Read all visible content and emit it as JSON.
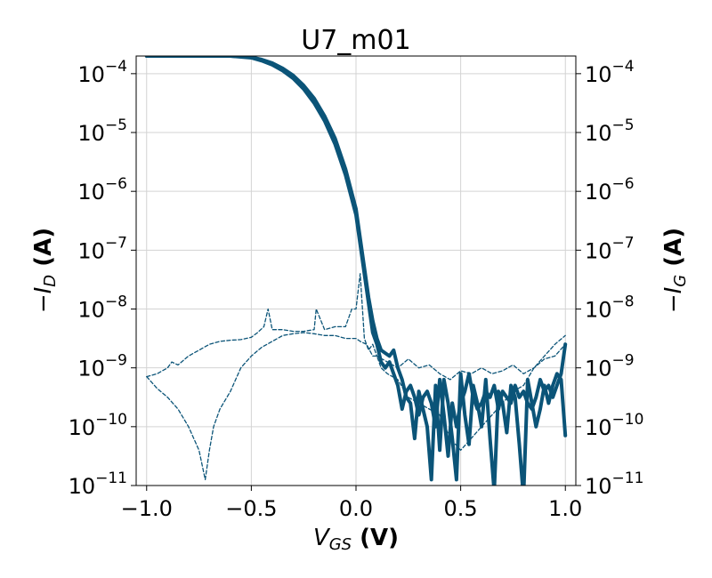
{
  "chart_data": {
    "type": "line",
    "title": "U7_m01",
    "xlabel": {
      "main": "V",
      "sub": "GS",
      "unit": " (V)"
    },
    "ylabel_left": {
      "main": "−I",
      "sub": "D",
      "unit": " (A)"
    },
    "ylabel_right": {
      "main": "−I",
      "sub": "G",
      "unit": " (A)"
    },
    "xlim": [
      -1.05,
      1.05
    ],
    "ylim_log10": [
      -11,
      -3.7
    ],
    "y_scale": "log",
    "grid": true,
    "color": "#0b5478",
    "x_ticks": [
      -1.0,
      -0.5,
      0.0,
      0.5,
      1.0
    ],
    "x_tick_labels": [
      "−1.0",
      "−0.5",
      "0.0",
      "0.5",
      "1.0"
    ],
    "y_ticks_exp": [
      -11,
      -10,
      -9,
      -8,
      -7,
      -6,
      -5,
      -4
    ],
    "y_tick_labels": [
      "−11",
      "−10",
      "−9",
      "−8",
      "−7",
      "−6",
      "−5",
      "−4"
    ],
    "series": [
      {
        "role": "drain-forward",
        "style": "solid",
        "x": [
          -1.0,
          -0.9,
          -0.8,
          -0.7,
          -0.6,
          -0.5,
          -0.45,
          -0.4,
          -0.35,
          -0.3,
          -0.25,
          -0.2,
          -0.15,
          -0.1,
          -0.05,
          0.0,
          0.02,
          0.04,
          0.06,
          0.08,
          0.1,
          0.12,
          0.14,
          0.16,
          0.18,
          0.2,
          0.22,
          0.24,
          0.26,
          0.28,
          0.3,
          0.32,
          0.34,
          0.36,
          0.38,
          0.4,
          0.42,
          0.44,
          0.46,
          0.48,
          0.5,
          0.52,
          0.54,
          0.56,
          0.58,
          0.6,
          0.62,
          0.64,
          0.66,
          0.68,
          0.7,
          0.72,
          0.74,
          0.76,
          0.78,
          0.8,
          0.82,
          0.84,
          0.86,
          0.88,
          0.9,
          0.92,
          0.94,
          0.96,
          0.98,
          1.0
        ],
        "y_log10": [
          -3.66,
          -3.66,
          -3.665,
          -3.67,
          -3.69,
          -3.72,
          -3.76,
          -3.82,
          -3.91,
          -4.03,
          -4.2,
          -4.42,
          -4.72,
          -5.1,
          -5.62,
          -6.3,
          -6.8,
          -7.3,
          -7.8,
          -8.2,
          -8.5,
          -8.7,
          -8.75,
          -8.8,
          -8.7,
          -9.0,
          -9.2,
          -9.5,
          -9.6,
          -10.2,
          -9.4,
          -9.7,
          -10.0,
          -10.9,
          -9.3,
          -10.4,
          -9.2,
          -9.6,
          -10.2,
          -10.9,
          -9.1,
          -9.8,
          -10.3,
          -9.3,
          -9.6,
          -10.0,
          -9.2,
          -10.2,
          -11.1,
          -9.4,
          -9.6,
          -10.1,
          -9.3,
          -9.5,
          -10.3,
          -11.2,
          -9.2,
          -9.6,
          -10.0,
          -9.7,
          -9.3,
          -9.6,
          -9.3,
          -9.1,
          -9.2,
          -10.15
        ]
      },
      {
        "role": "drain-reverse",
        "style": "solid",
        "x": [
          -1.0,
          -0.9,
          -0.8,
          -0.7,
          -0.6,
          -0.5,
          -0.45,
          -0.4,
          -0.35,
          -0.3,
          -0.25,
          -0.2,
          -0.15,
          -0.1,
          -0.05,
          0.0,
          0.02,
          0.04,
          0.06,
          0.08,
          0.1,
          0.12,
          0.14,
          0.16,
          0.18,
          0.2,
          0.22,
          0.24,
          0.26,
          0.28,
          0.3,
          0.32,
          0.34,
          0.36,
          0.38,
          0.4,
          0.42,
          0.44,
          0.46,
          0.48,
          0.5,
          0.52,
          0.54,
          0.56,
          0.58,
          0.6,
          0.62,
          0.64,
          0.66,
          0.68,
          0.7,
          0.72,
          0.74,
          0.76,
          0.78,
          0.8,
          0.82,
          0.84,
          0.86,
          0.88,
          0.9,
          0.92,
          0.94,
          0.96,
          0.98,
          1.0
        ],
        "y_log10": [
          -3.66,
          -3.66,
          -3.665,
          -3.67,
          -3.69,
          -3.73,
          -3.78,
          -3.85,
          -3.95,
          -4.08,
          -4.26,
          -4.5,
          -4.8,
          -5.2,
          -5.72,
          -6.4,
          -6.9,
          -7.4,
          -7.9,
          -8.4,
          -8.6,
          -8.9,
          -9.0,
          -8.9,
          -9.1,
          -9.3,
          -9.7,
          -9.4,
          -9.3,
          -9.5,
          -9.8,
          -9.5,
          -9.4,
          -9.6,
          -10.0,
          -9.2,
          -9.8,
          -10.5,
          -9.6,
          -10.0,
          -9.6,
          -9.4,
          -9.1,
          -9.5,
          -9.7,
          -9.6,
          -9.4,
          -9.5,
          -9.3,
          -9.7,
          -9.4,
          -9.5,
          -9.6,
          -9.3,
          -9.5,
          -9.4,
          -9.6,
          -9.7,
          -9.5,
          -9.2,
          -9.4,
          -9.3,
          -9.5,
          -9.3,
          -9.1,
          -8.6
        ]
      },
      {
        "role": "gate-forward",
        "style": "dashed",
        "x": [
          -1.0,
          -0.95,
          -0.9,
          -0.85,
          -0.8,
          -0.75,
          -0.72,
          -0.7,
          -0.68,
          -0.65,
          -0.6,
          -0.55,
          -0.5,
          -0.45,
          -0.4,
          -0.35,
          -0.3,
          -0.25,
          -0.2,
          -0.15,
          -0.1,
          -0.05,
          0.0,
          0.02,
          0.05,
          0.08,
          0.1,
          0.12,
          0.15,
          0.2,
          0.25,
          0.3,
          0.35,
          0.4,
          0.45,
          0.5,
          0.55,
          0.6,
          0.65,
          0.7,
          0.75,
          0.8,
          0.85,
          0.9,
          0.95,
          1.0
        ],
        "y_log10": [
          -9.15,
          -9.35,
          -9.5,
          -9.7,
          -10.0,
          -10.4,
          -10.9,
          -10.4,
          -10.0,
          -9.7,
          -9.4,
          -9.0,
          -8.8,
          -8.65,
          -8.55,
          -8.45,
          -8.42,
          -8.4,
          -8.42,
          -8.45,
          -8.45,
          -8.5,
          -8.5,
          -8.55,
          -8.6,
          -8.8,
          -8.8,
          -9.0,
          -9.1,
          -9.2,
          -9.5,
          -9.6,
          -9.7,
          -9.8,
          -10.2,
          -10.4,
          -10.2,
          -10.0,
          -9.8,
          -9.6,
          -9.4,
          -9.3,
          -9.0,
          -8.8,
          -8.6,
          -8.45
        ]
      },
      {
        "role": "gate-reverse",
        "style": "dashed",
        "x": [
          -1.0,
          -0.95,
          -0.9,
          -0.88,
          -0.85,
          -0.8,
          -0.75,
          -0.7,
          -0.65,
          -0.6,
          -0.55,
          -0.5,
          -0.47,
          -0.44,
          -0.42,
          -0.4,
          -0.35,
          -0.3,
          -0.25,
          -0.2,
          -0.19,
          -0.15,
          -0.1,
          -0.05,
          -0.02,
          0.0,
          0.02,
          0.04,
          0.06,
          0.08,
          0.1,
          0.15,
          0.2,
          0.25,
          0.3,
          0.35,
          0.4,
          0.45,
          0.5,
          0.55,
          0.6,
          0.65,
          0.7,
          0.75,
          0.8,
          0.85,
          0.9,
          0.95,
          1.0
        ],
        "y_log10": [
          -9.15,
          -9.1,
          -9.0,
          -8.9,
          -8.95,
          -8.8,
          -8.7,
          -8.6,
          -8.55,
          -8.53,
          -8.52,
          -8.48,
          -8.4,
          -8.3,
          -8.0,
          -8.35,
          -8.35,
          -8.38,
          -8.38,
          -8.35,
          -8.0,
          -8.35,
          -8.3,
          -8.3,
          -8.0,
          -8.0,
          -7.4,
          -8.5,
          -8.7,
          -8.6,
          -8.8,
          -8.9,
          -9.0,
          -8.85,
          -9.0,
          -8.95,
          -9.1,
          -9.2,
          -9.05,
          -9.1,
          -9.0,
          -9.1,
          -9.05,
          -8.95,
          -9.1,
          -9.0,
          -8.85,
          -8.8,
          -8.6
        ]
      }
    ]
  }
}
